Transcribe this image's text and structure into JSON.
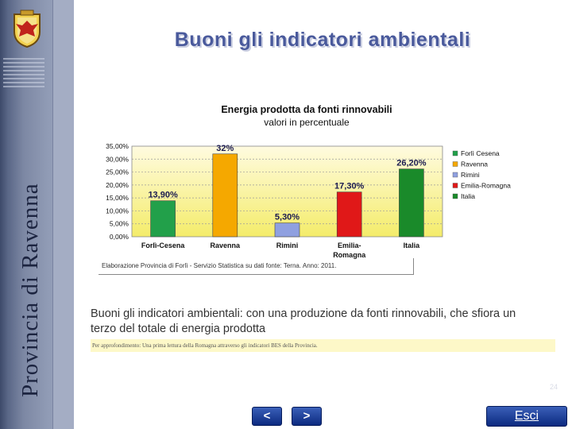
{
  "sidebar": {
    "vertical_title": "Provincia di Ravenna"
  },
  "page_title": "Buoni gli indicatori ambientali",
  "chart_data": {
    "type": "bar",
    "title": "Energia prodotta da fonti rinnovabili",
    "subtitle": "valori in percentuale",
    "categories": [
      "Forlì-Cesena",
      "Ravenna",
      "Rimini",
      "Emilia-Romagna",
      "Italia"
    ],
    "category_labels": [
      [
        "Forlì-Cesena"
      ],
      [
        "Ravenna"
      ],
      [
        "Rimini"
      ],
      [
        "Emilia-",
        "Romagna"
      ],
      [
        "Italia"
      ]
    ],
    "values": [
      13.9,
      32,
      5.3,
      17.3,
      26.2
    ],
    "data_labels": [
      "13,90%",
      "32%",
      "5,30%",
      "17,30%",
      "26,20%"
    ],
    "ylim": [
      0,
      35
    ],
    "y_ticks": [
      "0,00%",
      "5,00%",
      "10,00%",
      "15,00%",
      "20,00%",
      "25,00%",
      "30,00%",
      "35,00%"
    ],
    "legend": [
      "Forlì Cesena",
      "Ravenna",
      "Rimini",
      "Emilia-Romagna",
      "Italia"
    ],
    "legend_position": "right",
    "colors": [
      "#22a04a",
      "#f5a800",
      "#8fa0e0",
      "#e01818",
      "#1a8a2a"
    ],
    "grid": true,
    "source": "Elaborazione Provincia di Forlì - Servizio Statistica su dati fonte: Terna. Anno: 2011."
  },
  "description": "Buoni gli indicatori ambientali: con una produzione da fonti rinnovabili, che sfiora un terzo del totale di energia prodotta",
  "note": "Per approfondimento: Una prima lettura della Romagna attraverso gli indicatori BES della Provincia.",
  "page_number": "24",
  "nav": {
    "prev_label": "<",
    "next_label": ">",
    "exit_label": "Esci"
  }
}
